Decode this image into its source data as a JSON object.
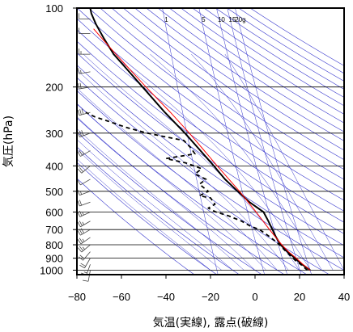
{
  "chart_data": {
    "type": "line",
    "title": "",
    "xlabel": "気温(実線), 露点(破線)",
    "ylabel": "気圧(hPa)",
    "xlim": [
      -80,
      40
    ],
    "ylim": [
      1040,
      100
    ],
    "y_scale": "log",
    "x_ticks": [
      -80,
      -60,
      -40,
      -20,
      0,
      20,
      40
    ],
    "y_ticks": [
      100,
      200,
      300,
      400,
      500,
      600,
      700,
      800,
      900,
      1000
    ],
    "x_tick_labels": [
      "−80",
      "−60",
      "−40",
      "−20",
      "0",
      "20",
      "40"
    ],
    "y_tick_labels": [
      "100",
      "200",
      "300",
      "400",
      "500",
      "600",
      "700",
      "800",
      "900",
      "1000"
    ],
    "mixing_ratio_labels": [
      "1",
      "5",
      "10",
      "15",
      "20g"
    ],
    "grid": true,
    "colors": {
      "temperature": "#000000",
      "dewpoint": "#000000",
      "parcel": "#ff0000",
      "adiabats": "#3333cc",
      "grid": "#000000"
    },
    "series": [
      {
        "style": "solid",
        "pressure": [
          1000,
          975,
          950,
          925,
          900,
          850,
          800,
          750,
          700,
          650,
          600,
          550,
          500,
          450,
          400,
          350,
          300,
          250,
          200,
          175,
          150,
          130,
          115,
          105,
          100
        ],
        "temperature": [
          24.8,
          23.0,
          21.0,
          19.5,
          18.0,
          14.5,
          11.5,
          9.5,
          7.8,
          6.0,
          3.8,
          -2.5,
          -7.8,
          -13.5,
          -18.5,
          -24.5,
          -31.5,
          -40.5,
          -50.5,
          -56.5,
          -63.5,
          -68.0,
          -71.5,
          -73.5,
          -74.0
        ]
      },
      {
        "style": "dashed",
        "pressure": [
          1000,
          975,
          950,
          925,
          900,
          850,
          800,
          750,
          700,
          680,
          650,
          620,
          600,
          580,
          560,
          530,
          520,
          500,
          470,
          450,
          430,
          410,
          390,
          375,
          360,
          340,
          320,
          300,
          285,
          270,
          260,
          250
        ],
        "dewpoint": [
          23.5,
          22.0,
          20.5,
          18.5,
          17.0,
          14.0,
          11.0,
          7.0,
          2.0,
          -2.0,
          -6.0,
          -12.0,
          -17.5,
          -21.0,
          -18.0,
          -20.0,
          -25.0,
          -21.0,
          -25.0,
          -22.0,
          -27.0,
          -24.0,
          -31.0,
          -40.0,
          -27.0,
          -29.0,
          -32.0,
          -48.5,
          -58.0,
          -66.0,
          -72.0,
          -76.0
        ]
      },
      {
        "style": "parcel",
        "pressure": [
          1000,
          950,
          900,
          850,
          800,
          700,
          600,
          500,
          400,
          300,
          250,
          200,
          150,
          120
        ],
        "temperature": [
          24.8,
          21.5,
          18.5,
          15.0,
          12.0,
          6.5,
          0.5,
          -7.0,
          -17.0,
          -29.5,
          -38.0,
          -49.0,
          -62.5,
          -72.5
        ]
      }
    ],
    "wind_barbs": [
      {
        "p": 1000,
        "dir": 190,
        "spd": 10
      },
      {
        "p": 950,
        "dir": 200,
        "spd": 15
      },
      {
        "p": 900,
        "dir": 210,
        "spd": 20
      },
      {
        "p": 850,
        "dir": 220,
        "spd": 20
      },
      {
        "p": 800,
        "dir": 230,
        "spd": 25
      },
      {
        "p": 750,
        "dir": 235,
        "spd": 25
      },
      {
        "p": 700,
        "dir": 240,
        "spd": 30
      },
      {
        "p": 650,
        "dir": 240,
        "spd": 25
      },
      {
        "p": 600,
        "dir": 245,
        "spd": 25
      },
      {
        "p": 550,
        "dir": 250,
        "spd": 20
      },
      {
        "p": 500,
        "dir": 250,
        "spd": 15
      },
      {
        "p": 450,
        "dir": 240,
        "spd": 10
      },
      {
        "p": 400,
        "dir": 230,
        "spd": 20
      },
      {
        "p": 350,
        "dir": 240,
        "spd": 25
      },
      {
        "p": 300,
        "dir": 250,
        "spd": 30
      },
      {
        "p": 250,
        "dir": 255,
        "spd": 30
      },
      {
        "p": 200,
        "dir": 260,
        "spd": 20
      },
      {
        "p": 175,
        "dir": 260,
        "spd": 15
      },
      {
        "p": 150,
        "dir": 270,
        "spd": 15
      },
      {
        "p": 125,
        "dir": 270,
        "spd": 10
      },
      {
        "p": 110,
        "dir": 270,
        "spd": 10
      }
    ]
  }
}
